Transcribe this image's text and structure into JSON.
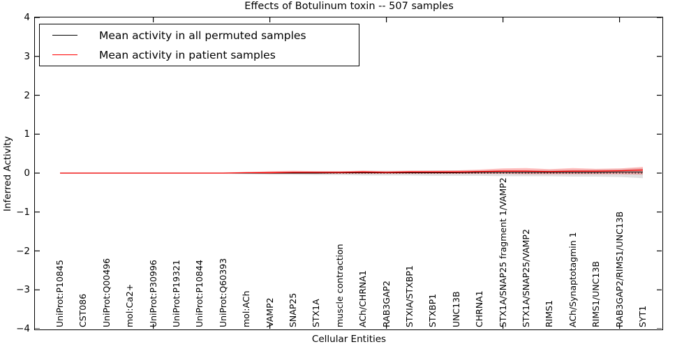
{
  "title": "Effects of Botulinum toxin -- 507 samples",
  "axes": {
    "xlabel": "Cellular Entities",
    "ylabel": "Inferred Activity",
    "ytick_display": [
      "4",
      "3",
      "2",
      "1",
      "0",
      "−1",
      "−2",
      "−3",
      "−4"
    ]
  },
  "legend": {
    "entries": [
      {
        "label": "Mean activity in all permuted samples",
        "color": "#000000"
      },
      {
        "label": "Mean activity in patient samples",
        "color": "#ff0000"
      }
    ]
  },
  "chart_data": {
    "type": "line",
    "title": "Effects of Botulinum toxin -- 507 samples",
    "xlabel": "Cellular Entities",
    "ylabel": "Inferred Activity",
    "ylim": [
      -4,
      4
    ],
    "yticks": [
      4,
      3,
      2,
      1,
      0,
      -1,
      -2,
      -3,
      -4
    ],
    "xtick_every": 5,
    "grid": false,
    "legend_position": "upper left",
    "zero_reference_line": {
      "value": 0,
      "style": "dotted",
      "color": "#000000"
    },
    "categories": [
      "UniProt:P10845",
      "CST086",
      "UniProt:Q00496",
      "mol:Ca2+",
      "UniProt:P30996",
      "UniProt:P19321",
      "UniProt:P10844",
      "UniProt:Q60393",
      "mol:ACh",
      "VAMP2",
      "SNAP25",
      "STX1A",
      "muscle contraction",
      "ACh/CHRNA1",
      "RAB3GAP2",
      "STXIA/STXBP1",
      "STXBP1",
      "UNC13B",
      "CHRNA1",
      "STX1A/SNAP25 fragment 1/VAMP2",
      "STX1A/SNAP25/VAMP2",
      "RIMS1",
      "ACh/Synaptotagmin 1",
      "RIMS1/UNC13B",
      "RAB3GAP2/RIMS1/UNC13B",
      "SYT1"
    ],
    "series": [
      {
        "name": "Mean activity in all permuted samples",
        "color": "#000000",
        "line_width": 1.0,
        "values": [
          0,
          0,
          0,
          0,
          0,
          0,
          0,
          0,
          0,
          0,
          0,
          0,
          0.01,
          0.01,
          0.01,
          0.01,
          0.01,
          0.01,
          0.02,
          0.02,
          0.02,
          0.02,
          0.02,
          0.02,
          0.03,
          0.03
        ],
        "band_upper": [
          0.02,
          0.02,
          0.02,
          0.02,
          0.02,
          0.02,
          0.02,
          0.02,
          0.03,
          0.04,
          0.04,
          0.05,
          0.05,
          0.06,
          0.06,
          0.06,
          0.07,
          0.07,
          0.07,
          0.08,
          0.08,
          0.08,
          0.09,
          0.09,
          0.1,
          0.13
        ],
        "band_lower": [
          -0.02,
          -0.02,
          -0.02,
          -0.02,
          -0.02,
          -0.02,
          -0.02,
          -0.02,
          -0.03,
          -0.04,
          -0.04,
          -0.05,
          -0.05,
          -0.06,
          -0.06,
          -0.06,
          -0.07,
          -0.07,
          -0.07,
          -0.08,
          -0.08,
          -0.08,
          -0.09,
          -0.09,
          -0.1,
          -0.13
        ],
        "band_color": "rgba(0,0,0,0.12)"
      },
      {
        "name": "Mean activity in patient samples",
        "color": "#ff0000",
        "line_width": 1.3,
        "values": [
          0,
          0,
          0,
          0,
          0,
          0,
          0,
          0,
          0.01,
          0.01,
          0.02,
          0.02,
          0.02,
          0.03,
          0.02,
          0.03,
          0.03,
          0.03,
          0.04,
          0.05,
          0.05,
          0.04,
          0.05,
          0.05,
          0.06,
          0.08
        ],
        "band_upper": [
          0.01,
          0.01,
          0.01,
          0.01,
          0.01,
          0.01,
          0.01,
          0.01,
          0.02,
          0.05,
          0.06,
          0.05,
          0.05,
          0.06,
          0.05,
          0.06,
          0.06,
          0.07,
          0.09,
          0.12,
          0.13,
          0.1,
          0.13,
          0.11,
          0.12,
          0.16
        ],
        "band_lower": [
          -0.01,
          -0.01,
          -0.01,
          -0.01,
          -0.01,
          -0.01,
          -0.01,
          -0.01,
          -0.01,
          -0.02,
          -0.02,
          -0.02,
          -0.02,
          -0.02,
          -0.02,
          -0.02,
          -0.02,
          -0.02,
          -0.02,
          -0.02,
          -0.03,
          -0.03,
          -0.03,
          -0.03,
          -0.03,
          -0.04
        ],
        "band_color": "rgba(255,0,0,0.25)"
      }
    ]
  }
}
